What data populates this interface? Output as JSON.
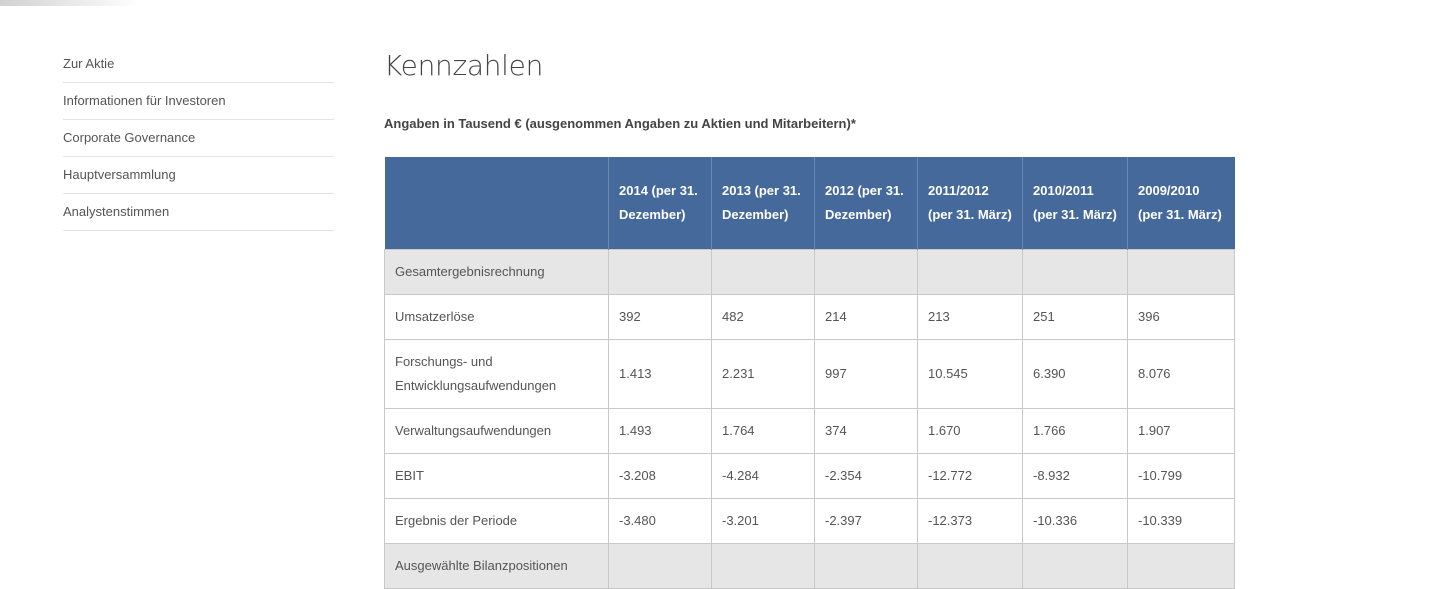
{
  "sidebar": {
    "items": [
      {
        "label": "Zur Aktie"
      },
      {
        "label": "Informationen für Investoren"
      },
      {
        "label": "Corporate Governance"
      },
      {
        "label": "Hauptversammlung"
      },
      {
        "label": "Analystenstimmen"
      }
    ]
  },
  "main": {
    "title": "Kennzahlen",
    "subtitle": "Angaben in Tausend € (ausgenommen Angaben zu Aktien und Mitarbeitern)*"
  },
  "table": {
    "headers": [
      "",
      "2014 (per 31. Dezember)",
      "2013 (per 31. Dezember)",
      "2012 (per 31. Dezember)",
      "2011/2012 (per 31. März)",
      "2010/2011 (per 31. März)",
      "2009/2010 (per 31. März)"
    ],
    "rows": [
      {
        "label": "Gesamtergebnisrechnung",
        "section": true,
        "values": [
          "",
          "",
          "",
          "",
          "",
          ""
        ]
      },
      {
        "label": "Umsatzerlöse",
        "values": [
          "392",
          "482",
          "214",
          "213",
          "251",
          "396"
        ]
      },
      {
        "label": "Forschungs- und Entwicklungsaufwendungen",
        "values": [
          "1.413",
          "2.231",
          "997",
          "10.545",
          "6.390",
          "8.076"
        ]
      },
      {
        "label": "Verwaltungsaufwendungen",
        "values": [
          "1.493",
          "1.764",
          "374",
          "1.670",
          "1.766",
          "1.907"
        ]
      },
      {
        "label": "EBIT",
        "values": [
          "-3.208",
          "-4.284",
          "-2.354",
          "-12.772",
          "-8.932",
          "-10.799"
        ]
      },
      {
        "label": "Ergebnis der Periode",
        "values": [
          "-3.480",
          "-3.201",
          "-2.397",
          "-12.373",
          "-10.336",
          "-10.339"
        ]
      },
      {
        "label": "Ausgewählte Bilanzpositionen",
        "section": true,
        "values": [
          "",
          "",
          "",
          "",
          "",
          ""
        ]
      }
    ]
  }
}
